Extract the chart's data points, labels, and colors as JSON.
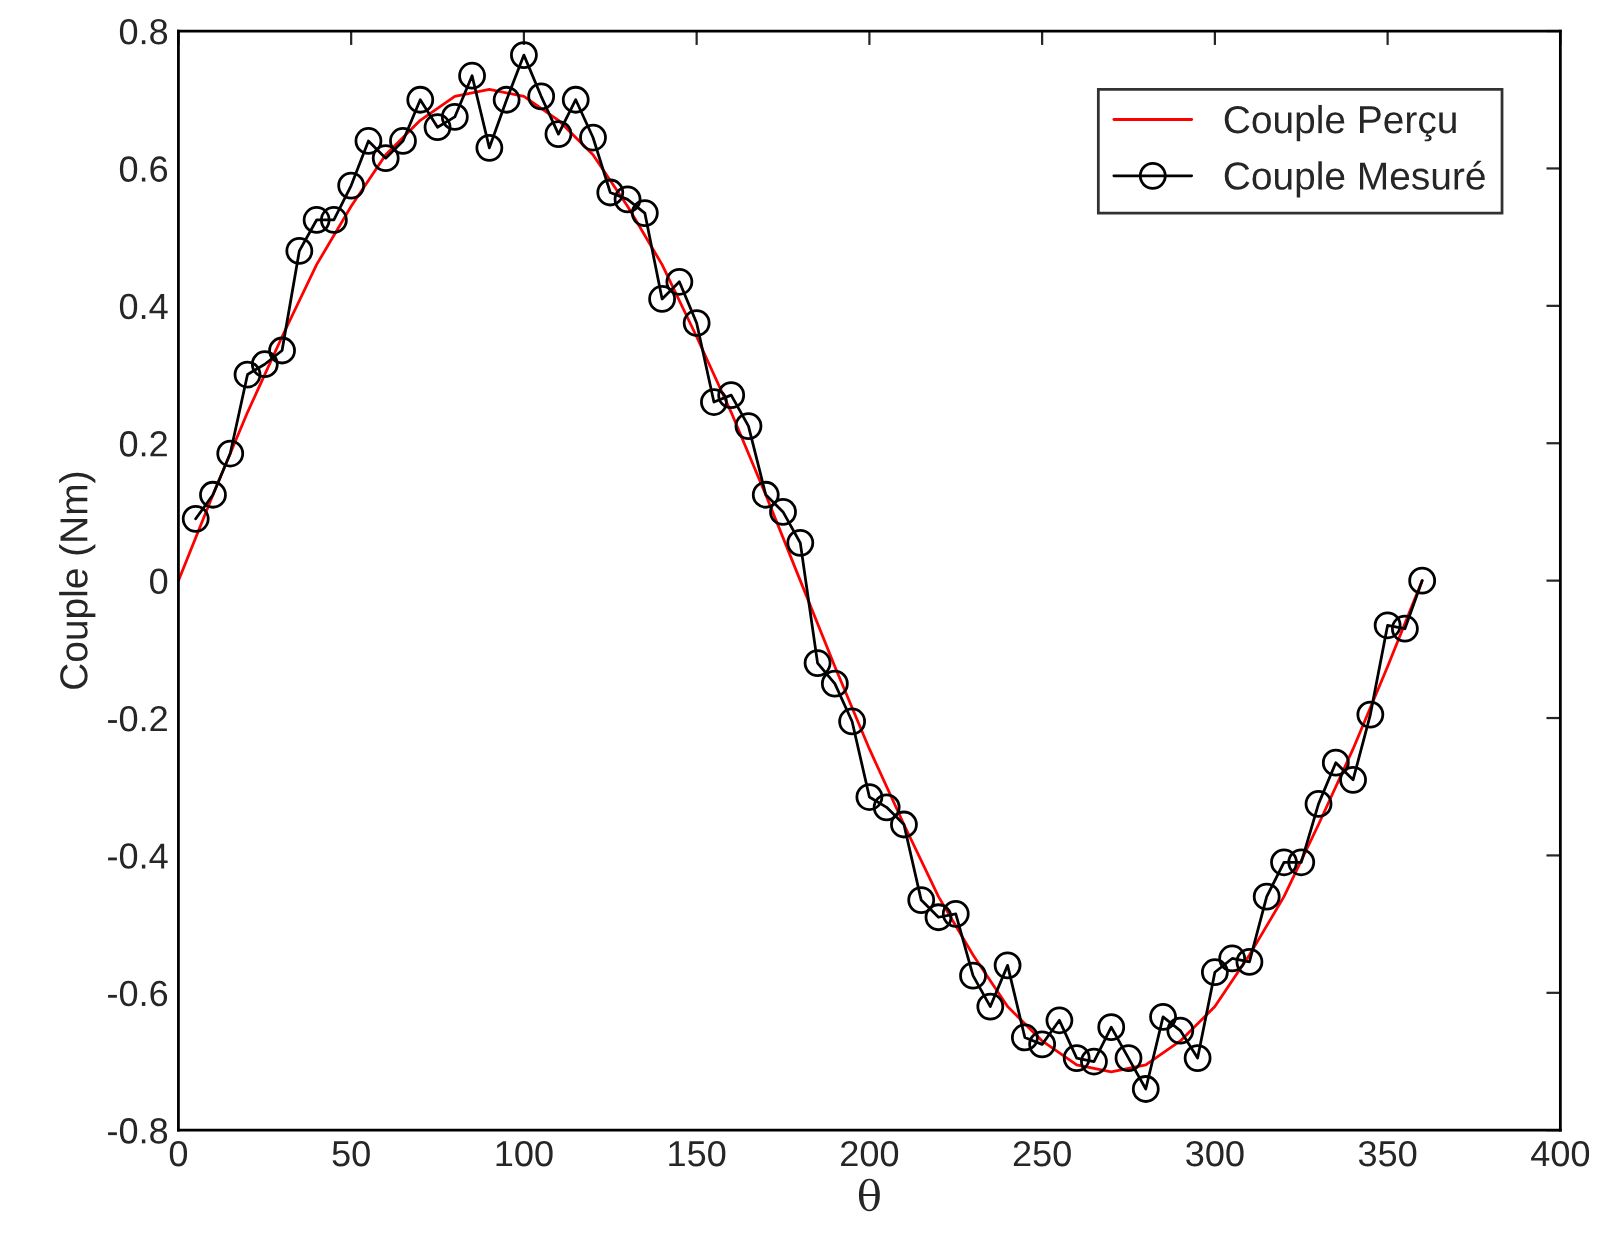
{
  "chart_data": {
    "type": "line",
    "xlabel": "θ",
    "ylabel": "Couple (Nm)",
    "xlim": [
      0,
      400
    ],
    "xticks": [
      0,
      50,
      100,
      150,
      200,
      250,
      300,
      350,
      400
    ],
    "ylim": [
      -0.8,
      0.8
    ],
    "yticks": [
      -0.8,
      -0.6,
      -0.4,
      -0.2,
      0,
      0.2,
      0.4,
      0.6,
      0.8
    ],
    "grid": false,
    "legend": "top right",
    "line_style": "solid",
    "series": [
      {
        "name": "Couple Perçu",
        "color": "#ff0000",
        "marker": "none",
        "x": [
          0,
          10,
          20,
          30,
          40,
          50,
          60,
          70,
          80,
          90,
          100,
          110,
          120,
          130,
          140,
          150,
          160,
          170,
          180,
          190,
          200,
          210,
          220,
          230,
          240,
          250,
          260,
          270,
          280,
          290,
          300,
          310,
          320,
          330,
          340,
          350,
          360
        ],
        "values": [
          0,
          0.125,
          0.245,
          0.355,
          0.46,
          0.545,
          0.62,
          0.67,
          0.705,
          0.715,
          0.705,
          0.67,
          0.62,
          0.545,
          0.46,
          0.355,
          0.245,
          0.125,
          0,
          -0.125,
          -0.245,
          -0.355,
          -0.46,
          -0.545,
          -0.62,
          -0.67,
          -0.705,
          -0.715,
          -0.705,
          -0.67,
          -0.62,
          -0.545,
          -0.46,
          -0.355,
          -0.245,
          -0.125,
          0
        ]
      },
      {
        "name": "Couple Mesuré",
        "color": "#000000",
        "marker": "circle",
        "x": [
          5,
          10,
          15,
          20,
          25,
          30,
          35,
          40,
          45,
          50,
          55,
          60,
          65,
          70,
          75,
          80,
          85,
          90,
          95,
          100,
          105,
          110,
          115,
          120,
          125,
          130,
          135,
          140,
          145,
          150,
          155,
          160,
          165,
          170,
          175,
          180,
          185,
          190,
          195,
          200,
          205,
          210,
          215,
          220,
          225,
          230,
          235,
          240,
          245,
          250,
          255,
          260,
          265,
          270,
          275,
          280,
          285,
          290,
          295,
          300,
          305,
          310,
          315,
          320,
          325,
          330,
          335,
          340,
          345,
          350,
          355,
          360
        ],
        "values": [
          0.09,
          0.125,
          0.185,
          0.3,
          0.315,
          0.335,
          0.48,
          0.525,
          0.525,
          0.575,
          0.64,
          0.615,
          0.64,
          0.7,
          0.66,
          0.675,
          0.735,
          0.63,
          0.7,
          0.765,
          0.705,
          0.65,
          0.7,
          0.645,
          0.565,
          0.555,
          0.535,
          0.41,
          0.435,
          0.375,
          0.26,
          0.27,
          0.225,
          0.125,
          0.1,
          0.055,
          -0.12,
          -0.15,
          -0.205,
          -0.315,
          -0.33,
          -0.355,
          -0.465,
          -0.49,
          -0.485,
          -0.575,
          -0.62,
          -0.56,
          -0.665,
          -0.675,
          -0.64,
          -0.695,
          -0.7,
          -0.65,
          -0.695,
          -0.74,
          -0.635,
          -0.655,
          -0.695,
          -0.57,
          -0.55,
          -0.555,
          -0.46,
          -0.41,
          -0.41,
          -0.325,
          -0.265,
          -0.29,
          -0.195,
          -0.065,
          -0.07,
          0.0
        ]
      }
    ]
  }
}
